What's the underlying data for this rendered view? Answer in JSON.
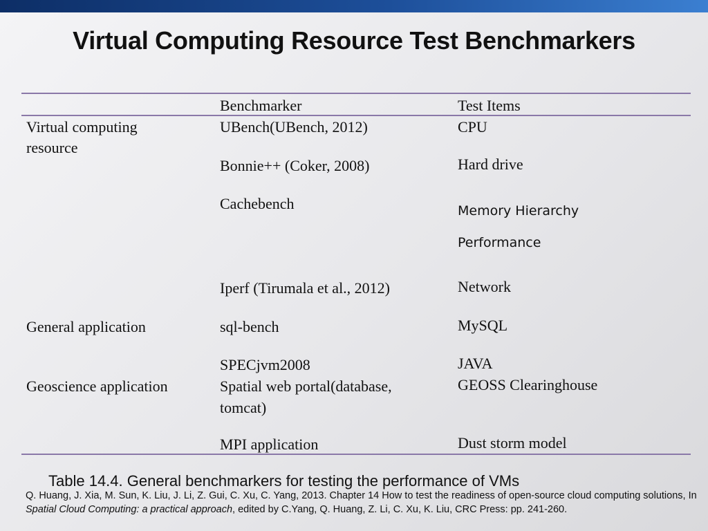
{
  "slide": {
    "title": "Virtual Computing Resource Test Benchmarkers"
  },
  "table": {
    "headers": {
      "col2": "Benchmarker",
      "col3": "Test Items"
    },
    "group1": "Virtual computing",
    "group1b": "resource",
    "ubench": "UBench(UBench, 2012)",
    "cpu": "CPU",
    "bonnie": "Bonnie++ (Coker, 2008)",
    "hdd": "Hard drive",
    "cachebench": "Cachebench",
    "memory1": "Memory Hierarchy",
    "memory2": "Performance",
    "iperf": "Iperf (Tirumala et al., 2012)",
    "network": "Network",
    "group2": "General application",
    "sqlbench": "sql-bench",
    "mysql": "MySQL",
    "specjvm": "SPECjvm2008",
    "java": "JAVA",
    "group3": "Geoscience application",
    "portal1": "Spatial web portal(database,",
    "portal2": "tomcat)",
    "geoss": "GEOSS Clearinghouse",
    "mpi": "MPI application",
    "dust": "Dust storm model"
  },
  "caption": "Table 14.4. General benchmarkers for testing the performance of VMs",
  "citation": {
    "before": "Q. Huang, J. Xia, M. Sun, K. Liu, J. Li, Z. Gui, C. Xu, C. Yang, 2013. Chapter 14 How to test the readiness of open-source cloud computing solutions, In ",
    "book": "Spatial Cloud Computing: a practical approach",
    "after": ", edited by C.Yang, Q. Huang, Z. Li, C. Xu, K. Liu, CRC Press: pp. 241-260."
  }
}
